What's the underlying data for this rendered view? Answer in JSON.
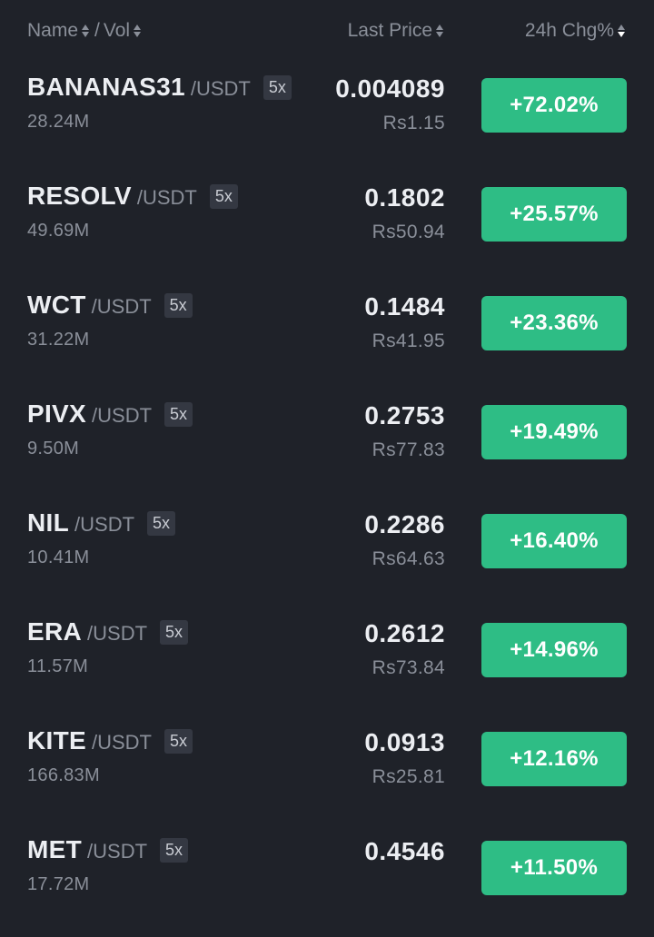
{
  "header": {
    "name_label": "Name",
    "separator": "/",
    "vol_label": "Vol",
    "last_price_label": "Last Price",
    "change_label": "24h Chg%"
  },
  "colors": {
    "background": "#1f2229",
    "positive": "#2ebd85",
    "muted_text": "#8a8f99",
    "primary_text": "#eceef2",
    "badge_bg": "#343842"
  },
  "rows": [
    {
      "base": "BANANAS31",
      "quote": "/USDT",
      "leverage": "5x",
      "volume": "28.24M",
      "last_price": "0.004089",
      "fiat_price": "Rs1.15",
      "change": "+72.02%"
    },
    {
      "base": "RESOLV",
      "quote": "/USDT",
      "leverage": "5x",
      "volume": "49.69M",
      "last_price": "0.1802",
      "fiat_price": "Rs50.94",
      "change": "+25.57%"
    },
    {
      "base": "WCT",
      "quote": "/USDT",
      "leverage": "5x",
      "volume": "31.22M",
      "last_price": "0.1484",
      "fiat_price": "Rs41.95",
      "change": "+23.36%"
    },
    {
      "base": "PIVX",
      "quote": "/USDT",
      "leverage": "5x",
      "volume": "9.50M",
      "last_price": "0.2753",
      "fiat_price": "Rs77.83",
      "change": "+19.49%"
    },
    {
      "base": "NIL",
      "quote": "/USDT",
      "leverage": "5x",
      "volume": "10.41M",
      "last_price": "0.2286",
      "fiat_price": "Rs64.63",
      "change": "+16.40%"
    },
    {
      "base": "ERA",
      "quote": "/USDT",
      "leverage": "5x",
      "volume": "11.57M",
      "last_price": "0.2612",
      "fiat_price": "Rs73.84",
      "change": "+14.96%"
    },
    {
      "base": "KITE",
      "quote": "/USDT",
      "leverage": "5x",
      "volume": "166.83M",
      "last_price": "0.0913",
      "fiat_price": "Rs25.81",
      "change": "+12.16%"
    },
    {
      "base": "MET",
      "quote": "/USDT",
      "leverage": "5x",
      "volume": "17.72M",
      "last_price": "0.4546",
      "fiat_price": "",
      "change": "+11.50%"
    }
  ]
}
